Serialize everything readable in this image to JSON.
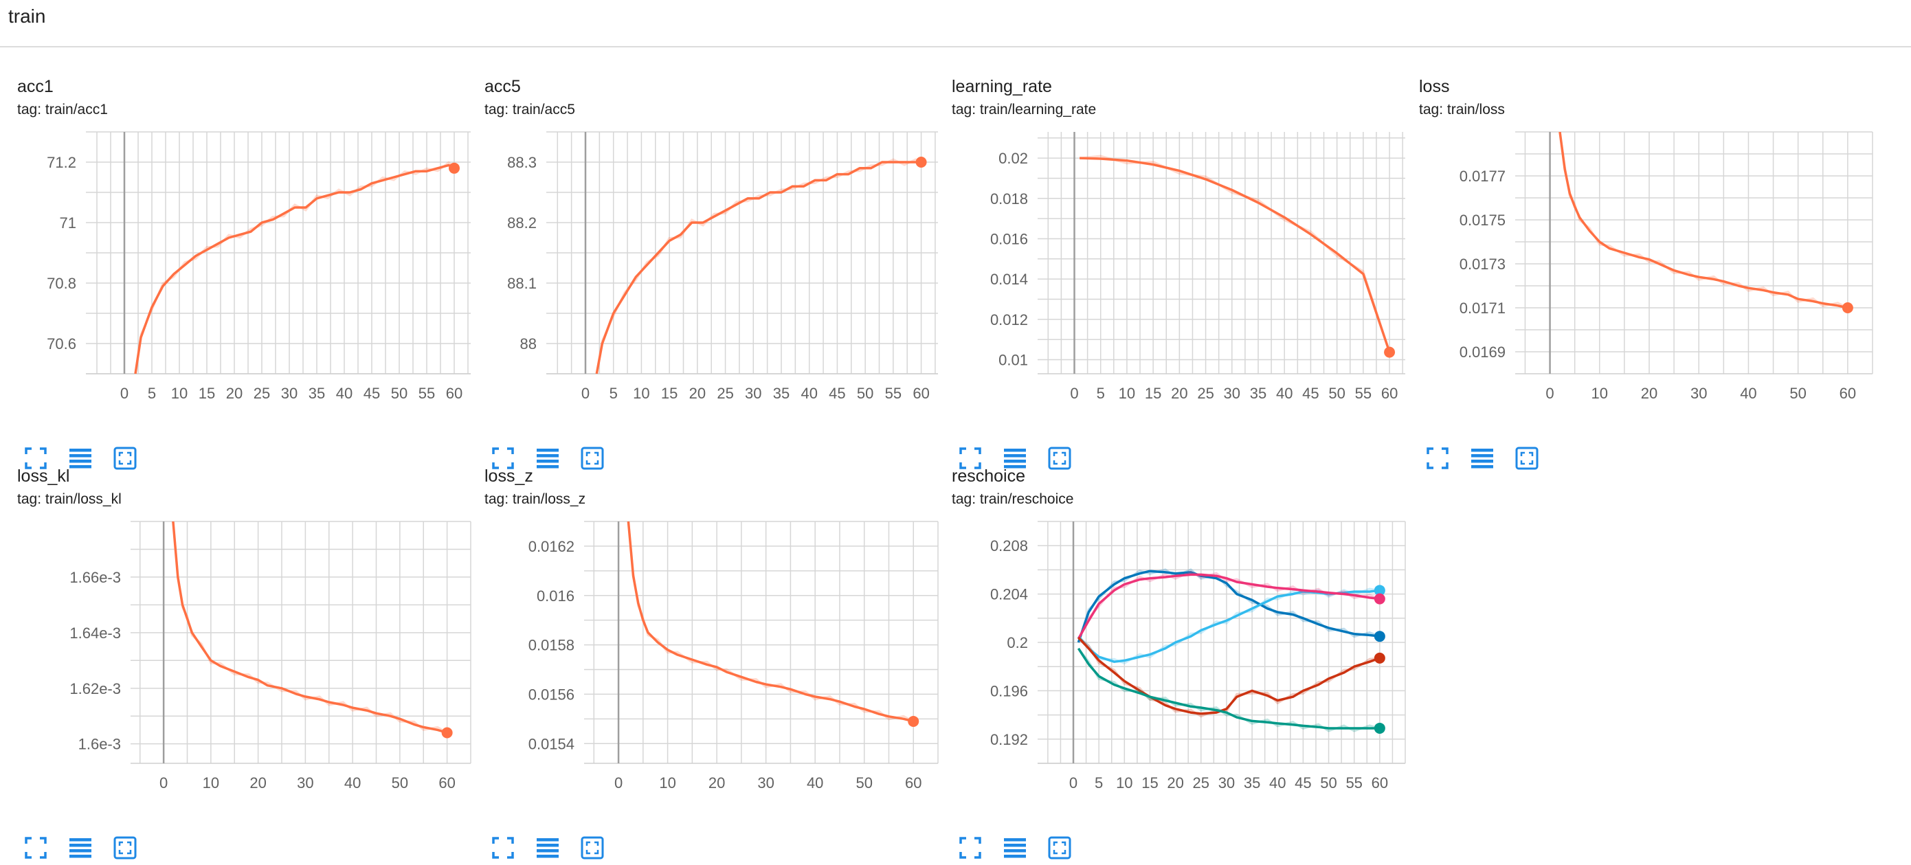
{
  "section": {
    "title": "train"
  },
  "colors": {
    "orange": "#ff7043",
    "orange_light": "#fbd3c6",
    "reschoice_series": [
      "#0077bb",
      "#33bbee",
      "#ee3377",
      "#cc3311",
      "#009988"
    ],
    "button_blue": "#1e88e5"
  },
  "buttons": {
    "fullscreen_icon": "fullscreen-icon",
    "data_table_icon": "data-table-icon",
    "fit_domain_icon": "fit-domain-icon"
  },
  "chart_data": [
    {
      "type": "line",
      "title": "acc1",
      "tag": "tag: train/acc1",
      "xlabel": "",
      "ylabel": "",
      "xlim": [
        -7,
        63
      ],
      "ylim": [
        70.5,
        71.3
      ],
      "x_ticks": [
        0,
        5,
        10,
        15,
        20,
        25,
        30,
        35,
        40,
        45,
        50,
        55,
        60
      ],
      "y_ticks": [
        70.6,
        70.8,
        71,
        71.2
      ],
      "y_tick_labels": [
        "70.6",
        "70.8",
        "71",
        "71.2"
      ],
      "grid": true,
      "series": [
        {
          "x": [
            2,
            3,
            5,
            7,
            9,
            11,
            13,
            15,
            17,
            19,
            21,
            23,
            25,
            27,
            29,
            31,
            33,
            35,
            37,
            39,
            41,
            43,
            45,
            47,
            49,
            51,
            53,
            55,
            57,
            59,
            60
          ],
          "values": [
            70.5,
            70.62,
            70.72,
            70.79,
            70.83,
            70.86,
            70.89,
            70.91,
            70.93,
            70.95,
            70.96,
            70.97,
            71.0,
            71.01,
            71.03,
            71.05,
            71.05,
            71.08,
            71.09,
            71.1,
            71.1,
            71.11,
            71.13,
            71.14,
            71.15,
            71.16,
            71.17,
            71.17,
            71.18,
            71.19,
            71.18
          ]
        }
      ]
    },
    {
      "type": "line",
      "title": "acc5",
      "tag": "tag: train/acc5",
      "xlabel": "",
      "ylabel": "",
      "xlim": [
        -7,
        63
      ],
      "ylim": [
        87.95,
        88.35
      ],
      "x_ticks": [
        0,
        5,
        10,
        15,
        20,
        25,
        30,
        35,
        40,
        45,
        50,
        55,
        60
      ],
      "y_ticks": [
        88,
        88.1,
        88.2,
        88.3
      ],
      "y_tick_labels": [
        "88",
        "88.1",
        "88.2",
        "88.3"
      ],
      "grid": true,
      "series": [
        {
          "x": [
            2,
            3,
            5,
            7,
            9,
            11,
            13,
            15,
            17,
            19,
            21,
            23,
            25,
            27,
            29,
            31,
            33,
            35,
            37,
            39,
            41,
            43,
            45,
            47,
            49,
            51,
            53,
            55,
            57,
            59,
            60
          ],
          "values": [
            87.95,
            88.0,
            88.05,
            88.08,
            88.11,
            88.13,
            88.15,
            88.17,
            88.18,
            88.2,
            88.2,
            88.21,
            88.22,
            88.23,
            88.24,
            88.24,
            88.25,
            88.25,
            88.26,
            88.26,
            88.27,
            88.27,
            88.28,
            88.28,
            88.29,
            88.29,
            88.3,
            88.3,
            88.3,
            88.3,
            88.3
          ]
        }
      ]
    },
    {
      "type": "line",
      "title": "learning_rate",
      "tag": "tag: train/learning_rate",
      "xlabel": "",
      "ylabel": "",
      "xlim": [
        -7,
        63
      ],
      "ylim": [
        0.0093,
        0.0213
      ],
      "x_ticks": [
        0,
        5,
        10,
        15,
        20,
        25,
        30,
        35,
        40,
        45,
        50,
        55,
        60
      ],
      "y_ticks": [
        0.01,
        0.012,
        0.014,
        0.016,
        0.018,
        0.02
      ],
      "y_tick_labels": [
        "0.01",
        "0.012",
        "0.014",
        "0.016",
        "0.018",
        "0.02"
      ],
      "grid": true,
      "series": [
        {
          "x": [
            1,
            5,
            10,
            15,
            20,
            25,
            30,
            35,
            40,
            45,
            50,
            55,
            60
          ],
          "values": [
            0.02,
            0.01997,
            0.01988,
            0.01968,
            0.01937,
            0.01895,
            0.01842,
            0.01779,
            0.01706,
            0.01622,
            0.01528,
            0.01425,
            0.01037
          ]
        }
      ]
    },
    {
      "type": "line",
      "title": "loss",
      "tag": "tag: train/loss",
      "xlabel": "",
      "ylabel": "",
      "xlim": [
        -7,
        65
      ],
      "ylim": [
        0.0168,
        0.0179
      ],
      "x_ticks": [
        0,
        10,
        20,
        30,
        40,
        50,
        60
      ],
      "y_ticks": [
        0.0169,
        0.0171,
        0.0173,
        0.0175,
        0.0177
      ],
      "y_tick_labels": [
        "0.0169",
        "0.0171",
        "0.0173",
        "0.0175",
        "0.0177"
      ],
      "grid": true,
      "series": [
        {
          "x": [
            2,
            3,
            4,
            5,
            6,
            8,
            10,
            12,
            15,
            18,
            20,
            22,
            25,
            28,
            30,
            33,
            35,
            38,
            40,
            43,
            45,
            48,
            50,
            53,
            55,
            58,
            60
          ],
          "values": [
            0.0179,
            0.01773,
            0.01762,
            0.01756,
            0.01751,
            0.01745,
            0.0174,
            0.01737,
            0.01735,
            0.01733,
            0.01732,
            0.0173,
            0.01727,
            0.01725,
            0.01724,
            0.01723,
            0.01722,
            0.0172,
            0.01719,
            0.01718,
            0.01717,
            0.01716,
            0.01714,
            0.01713,
            0.01712,
            0.01711,
            0.0171
          ]
        }
      ]
    },
    {
      "type": "line",
      "title": "loss_kl",
      "tag": "tag: train/loss_kl",
      "xlabel": "",
      "ylabel": "",
      "xlim": [
        -7,
        65
      ],
      "ylim": [
        0.001593,
        0.00168
      ],
      "x_ticks": [
        0,
        10,
        20,
        30,
        40,
        50,
        60
      ],
      "y_ticks": [
        0.0016,
        0.00162,
        0.00164,
        0.00166
      ],
      "y_tick_labels": [
        "1.6e-3",
        "1.62e-3",
        "1.64e-3",
        "1.66e-3"
      ],
      "grid": true,
      "series": [
        {
          "x": [
            2,
            3,
            4,
            5,
            6,
            8,
            10,
            12,
            15,
            18,
            20,
            22,
            25,
            28,
            30,
            33,
            35,
            38,
            40,
            43,
            45,
            48,
            50,
            53,
            55,
            58,
            60
          ],
          "values": [
            0.00168,
            0.00166,
            0.00165,
            0.001645,
            0.00164,
            0.001635,
            0.00163,
            0.001628,
            0.001626,
            0.001624,
            0.001623,
            0.001621,
            0.00162,
            0.001618,
            0.001617,
            0.001616,
            0.001615,
            0.001614,
            0.001613,
            0.001612,
            0.001611,
            0.00161,
            0.001609,
            0.001607,
            0.001606,
            0.001605,
            0.001604
          ]
        }
      ]
    },
    {
      "type": "line",
      "title": "loss_z",
      "tag": "tag: train/loss_z",
      "xlabel": "",
      "ylabel": "",
      "xlim": [
        -7,
        65
      ],
      "ylim": [
        0.01532,
        0.0163
      ],
      "x_ticks": [
        0,
        10,
        20,
        30,
        40,
        50,
        60
      ],
      "y_ticks": [
        0.0154,
        0.0156,
        0.0158,
        0.016,
        0.0162
      ],
      "y_tick_labels": [
        "0.0154",
        "0.0156",
        "0.0158",
        "0.016",
        "0.0162"
      ],
      "grid": true,
      "series": [
        {
          "x": [
            2,
            3,
            4,
            5,
            6,
            8,
            10,
            12,
            15,
            18,
            20,
            22,
            25,
            28,
            30,
            33,
            35,
            38,
            40,
            43,
            45,
            48,
            50,
            53,
            55,
            58,
            60
          ],
          "values": [
            0.0163,
            0.01608,
            0.01597,
            0.0159,
            0.01585,
            0.01581,
            0.01578,
            0.01576,
            0.01574,
            0.01572,
            0.01571,
            0.01569,
            0.01567,
            0.01565,
            0.01564,
            0.01563,
            0.01562,
            0.0156,
            0.01559,
            0.01558,
            0.01557,
            0.01555,
            0.01554,
            0.01552,
            0.01551,
            0.0155,
            0.01549
          ]
        }
      ]
    },
    {
      "type": "line",
      "title": "reschoice",
      "tag": "tag: train/reschoice",
      "xlabel": "",
      "ylabel": "",
      "xlim": [
        -7,
        65
      ],
      "ylim": [
        0.19,
        0.21
      ],
      "x_ticks": [
        0,
        5,
        10,
        15,
        20,
        25,
        30,
        35,
        40,
        45,
        50,
        55,
        60
      ],
      "y_ticks": [
        0.192,
        0.196,
        0.2,
        0.204,
        0.208
      ],
      "y_tick_labels": [
        "0.192",
        "0.196",
        "0.2",
        "0.204",
        "0.208"
      ],
      "grid": true,
      "series": [
        {
          "x": [
            1,
            3,
            5,
            8,
            10,
            13,
            15,
            18,
            20,
            23,
            25,
            28,
            30,
            32,
            35,
            38,
            40,
            43,
            45,
            48,
            50,
            53,
            55,
            58,
            60
          ],
          "values": [
            0.2,
            0.2025,
            0.2038,
            0.2048,
            0.2053,
            0.2057,
            0.2059,
            0.2058,
            0.2057,
            0.2058,
            0.2055,
            0.2053,
            0.2049,
            0.204,
            0.2035,
            0.2028,
            0.2025,
            0.2023,
            0.202,
            0.2015,
            0.2012,
            0.2009,
            0.2007,
            0.2006,
            0.2005
          ]
        },
        {
          "x": [
            1,
            3,
            5,
            8,
            10,
            13,
            15,
            18,
            20,
            23,
            25,
            28,
            30,
            32,
            35,
            38,
            40,
            43,
            45,
            48,
            50,
            53,
            55,
            58,
            60
          ],
          "values": [
            0.2005,
            0.1995,
            0.1988,
            0.1984,
            0.1985,
            0.1988,
            0.199,
            0.1995,
            0.2,
            0.2005,
            0.201,
            0.2015,
            0.2018,
            0.2022,
            0.2028,
            0.2034,
            0.2038,
            0.204,
            0.2042,
            0.2041,
            0.204,
            0.2041,
            0.2042,
            0.2042,
            0.2043
          ]
        },
        {
          "x": [
            1,
            3,
            5,
            8,
            10,
            13,
            15,
            18,
            20,
            23,
            25,
            28,
            30,
            32,
            35,
            38,
            40,
            43,
            45,
            48,
            50,
            53,
            55,
            58,
            60
          ],
          "values": [
            0.2003,
            0.2018,
            0.2032,
            0.2043,
            0.2048,
            0.2052,
            0.2053,
            0.2054,
            0.2055,
            0.2056,
            0.2056,
            0.2055,
            0.2053,
            0.205,
            0.2048,
            0.2046,
            0.2045,
            0.2044,
            0.2043,
            0.2042,
            0.2041,
            0.204,
            0.2039,
            0.2037,
            0.2036
          ]
        },
        {
          "x": [
            1,
            3,
            5,
            8,
            10,
            13,
            15,
            18,
            20,
            23,
            25,
            28,
            30,
            32,
            35,
            38,
            40,
            43,
            45,
            48,
            50,
            53,
            55,
            58,
            60
          ],
          "values": [
            0.2004,
            0.1995,
            0.1985,
            0.1975,
            0.1968,
            0.196,
            0.1955,
            0.1948,
            0.1945,
            0.1942,
            0.1941,
            0.1942,
            0.1945,
            0.1955,
            0.196,
            0.1956,
            0.1952,
            0.1955,
            0.196,
            0.1965,
            0.197,
            0.1975,
            0.198,
            0.1984,
            0.1987
          ]
        },
        {
          "x": [
            1,
            3,
            5,
            8,
            10,
            13,
            15,
            18,
            20,
            23,
            25,
            28,
            30,
            32,
            35,
            38,
            40,
            43,
            45,
            48,
            50,
            53,
            55,
            58,
            60
          ],
          "values": [
            0.1995,
            0.1982,
            0.1972,
            0.1965,
            0.1962,
            0.1958,
            0.1955,
            0.1952,
            0.195,
            0.1947,
            0.1946,
            0.1944,
            0.1942,
            0.1938,
            0.1935,
            0.1934,
            0.1933,
            0.1932,
            0.1931,
            0.193,
            0.1929,
            0.1929,
            0.1929,
            0.1929,
            0.1929
          ]
        }
      ]
    }
  ]
}
